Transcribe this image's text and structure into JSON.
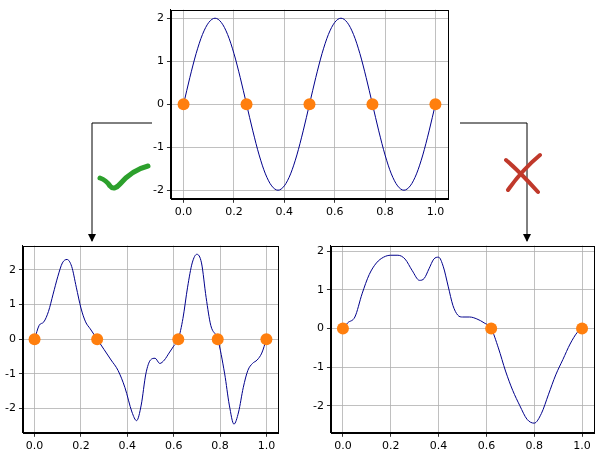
{
  "chart_data": [
    {
      "type": "line",
      "grid": true,
      "xlim": [
        -0.05,
        1.05
      ],
      "xticks": [
        {
          "value": 0,
          "label": "0.0"
        },
        {
          "value": 0.2,
          "label": "0.2"
        },
        {
          "value": 0.4,
          "label": "0.4"
        },
        {
          "value": 0.6,
          "label": "0.6"
        },
        {
          "value": 0.8,
          "label": "0.8"
        },
        {
          "value": 1,
          "label": "1.0"
        }
      ],
      "ylim": [
        -2.2,
        2.2
      ],
      "yticks": [
        -2,
        -1,
        0,
        1,
        2
      ],
      "series": [
        {
          "type": "line",
          "color": "#00008b",
          "line_style": "solid",
          "marker": "none",
          "x": [
            0,
            0.025,
            0.05,
            0.075,
            0.1,
            0.125,
            0.15,
            0.175,
            0.2,
            0.225,
            0.25,
            0.275,
            0.3,
            0.325,
            0.35,
            0.375,
            0.4,
            0.425,
            0.45,
            0.475,
            0.5,
            0.525,
            0.55,
            0.575,
            0.6,
            0.625,
            0.65,
            0.675,
            0.7,
            0.725,
            0.75,
            0.775,
            0.8,
            0.825,
            0.85,
            0.875,
            0.9,
            0.925,
            0.95,
            0.975,
            1
          ],
          "values": [
            0,
            0.62,
            1.18,
            1.62,
            1.9,
            2,
            1.9,
            1.62,
            1.18,
            0.62,
            0,
            -0.62,
            -1.18,
            -1.62,
            -1.9,
            -2,
            -1.9,
            -1.62,
            -1.18,
            -0.62,
            0,
            0.62,
            1.18,
            1.62,
            1.9,
            2,
            1.9,
            1.62,
            1.18,
            0.62,
            0,
            -0.62,
            -1.18,
            -1.62,
            -1.9,
            -2,
            -1.9,
            -1.62,
            -1.18,
            -0.62,
            0
          ]
        },
        {
          "type": "scatter",
          "color": "#ff7f0e",
          "marker": "circle",
          "x": [
            0,
            0.25,
            0.5,
            0.75,
            1
          ],
          "values": [
            0,
            0,
            0,
            0,
            0
          ]
        }
      ]
    },
    {
      "type": "line",
      "grid": true,
      "xlim": [
        -0.05,
        1.05
      ],
      "xticks": [
        {
          "value": 0,
          "label": "0.0"
        },
        {
          "value": 0.2,
          "label": "0.2"
        },
        {
          "value": 0.4,
          "label": "0.4"
        },
        {
          "value": 0.6,
          "label": "0.6"
        },
        {
          "value": 0.8,
          "label": "0.8"
        },
        {
          "value": 1,
          "label": "1.0"
        }
      ],
      "ylim": [
        -2.7,
        2.7
      ],
      "yticks": [
        -2,
        -1,
        0,
        1,
        2
      ],
      "series": [
        {
          "type": "line",
          "color": "#00008b",
          "line_style": "solid",
          "marker": "none",
          "x": [
            0,
            0.02,
            0.04,
            0.06,
            0.08,
            0.1,
            0.12,
            0.14,
            0.16,
            0.18,
            0.2,
            0.22,
            0.24,
            0.27,
            0.3,
            0.33,
            0.36,
            0.39,
            0.42,
            0.44,
            0.46,
            0.48,
            0.5,
            0.52,
            0.54,
            0.56,
            0.58,
            0.6,
            0.62,
            0.64,
            0.66,
            0.68,
            0.7,
            0.72,
            0.74,
            0.76,
            0.79,
            0.82,
            0.84,
            0.86,
            0.88,
            0.9,
            0.92,
            0.94,
            0.96,
            0.98,
            1
          ],
          "values": [
            0,
            0.4,
            0.5,
            0.8,
            1.3,
            1.8,
            2.2,
            2.3,
            2.1,
            1.5,
            0.9,
            0.5,
            0.3,
            0,
            -0.3,
            -0.6,
            -0.9,
            -1.4,
            -2.1,
            -2.35,
            -1.9,
            -1.0,
            -0.6,
            -0.55,
            -0.7,
            -0.6,
            -0.4,
            -0.2,
            0,
            0.6,
            1.5,
            2.2,
            2.45,
            2.2,
            1.2,
            0.4,
            0,
            -1.0,
            -1.9,
            -2.45,
            -2.1,
            -1.4,
            -0.9,
            -0.7,
            -0.6,
            -0.4,
            0
          ]
        },
        {
          "type": "scatter",
          "color": "#ff7f0e",
          "marker": "circle",
          "x": [
            0,
            0.27,
            0.62,
            0.79,
            1
          ],
          "values": [
            0,
            0,
            0,
            0,
            0
          ]
        }
      ]
    },
    {
      "type": "line",
      "grid": true,
      "xlim": [
        -0.05,
        1.05
      ],
      "xticks": [
        {
          "value": 0,
          "label": "0.0"
        },
        {
          "value": 0.2,
          "label": "0.2"
        },
        {
          "value": 0.4,
          "label": "0.4"
        },
        {
          "value": 0.6,
          "label": "0.6"
        },
        {
          "value": 0.8,
          "label": "0.8"
        },
        {
          "value": 1,
          "label": "1.0"
        }
      ],
      "ylim": [
        -2.7,
        2.15
      ],
      "yticks": [
        -2,
        -1,
        0,
        1,
        2
      ],
      "series": [
        {
          "type": "line",
          "color": "#00008b",
          "line_style": "solid",
          "marker": "none",
          "x": [
            0,
            0.02,
            0.05,
            0.08,
            0.11,
            0.14,
            0.17,
            0.2,
            0.23,
            0.26,
            0.29,
            0.32,
            0.34,
            0.36,
            0.38,
            0.4,
            0.42,
            0.44,
            0.46,
            0.48,
            0.5,
            0.53,
            0.56,
            0.59,
            0.62,
            0.65,
            0.68,
            0.71,
            0.74,
            0.77,
            0.8,
            0.83,
            0.86,
            0.89,
            0.92,
            0.95,
            0.98,
            1
          ],
          "values": [
            0,
            0.15,
            0.3,
            0.9,
            1.4,
            1.7,
            1.85,
            1.9,
            1.9,
            1.8,
            1.5,
            1.25,
            1.3,
            1.55,
            1.8,
            1.85,
            1.6,
            1.1,
            0.6,
            0.35,
            0.3,
            0.3,
            0.25,
            0.15,
            0,
            -0.5,
            -1.1,
            -1.6,
            -2.0,
            -2.35,
            -2.45,
            -2.2,
            -1.7,
            -1.2,
            -0.8,
            -0.4,
            -0.1,
            0
          ]
        },
        {
          "type": "scatter",
          "color": "#ff7f0e",
          "marker": "circle",
          "x": [
            0,
            0.62,
            1
          ],
          "values": [
            0,
            0,
            0
          ]
        }
      ]
    }
  ]
}
